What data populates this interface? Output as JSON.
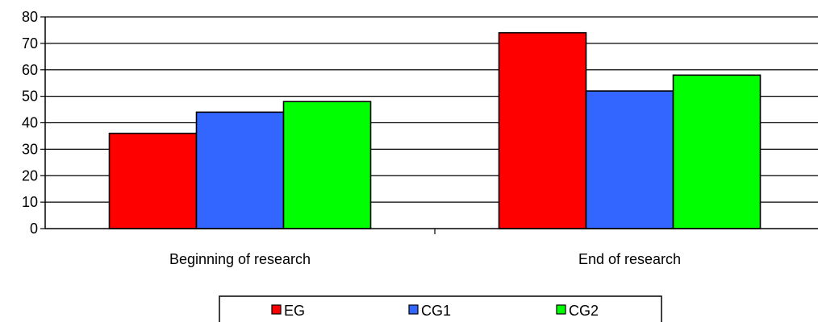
{
  "chart_data": {
    "type": "bar",
    "categories": [
      "Beginning of research",
      "End of research"
    ],
    "series": [
      {
        "name": "EG",
        "values": [
          36,
          74
        ],
        "color": "#ff0000"
      },
      {
        "name": "CG1",
        "values": [
          44,
          52
        ],
        "color": "#3366ff"
      },
      {
        "name": "CG2",
        "values": [
          48,
          58
        ],
        "color": "#00ff00"
      }
    ],
    "title": "",
    "xlabel": "",
    "ylabel": "",
    "ylim": [
      0,
      80
    ],
    "yticks": [
      0,
      10,
      20,
      30,
      40,
      50,
      60,
      70,
      80
    ],
    "grid": true,
    "legend_position": "bottom-center"
  }
}
